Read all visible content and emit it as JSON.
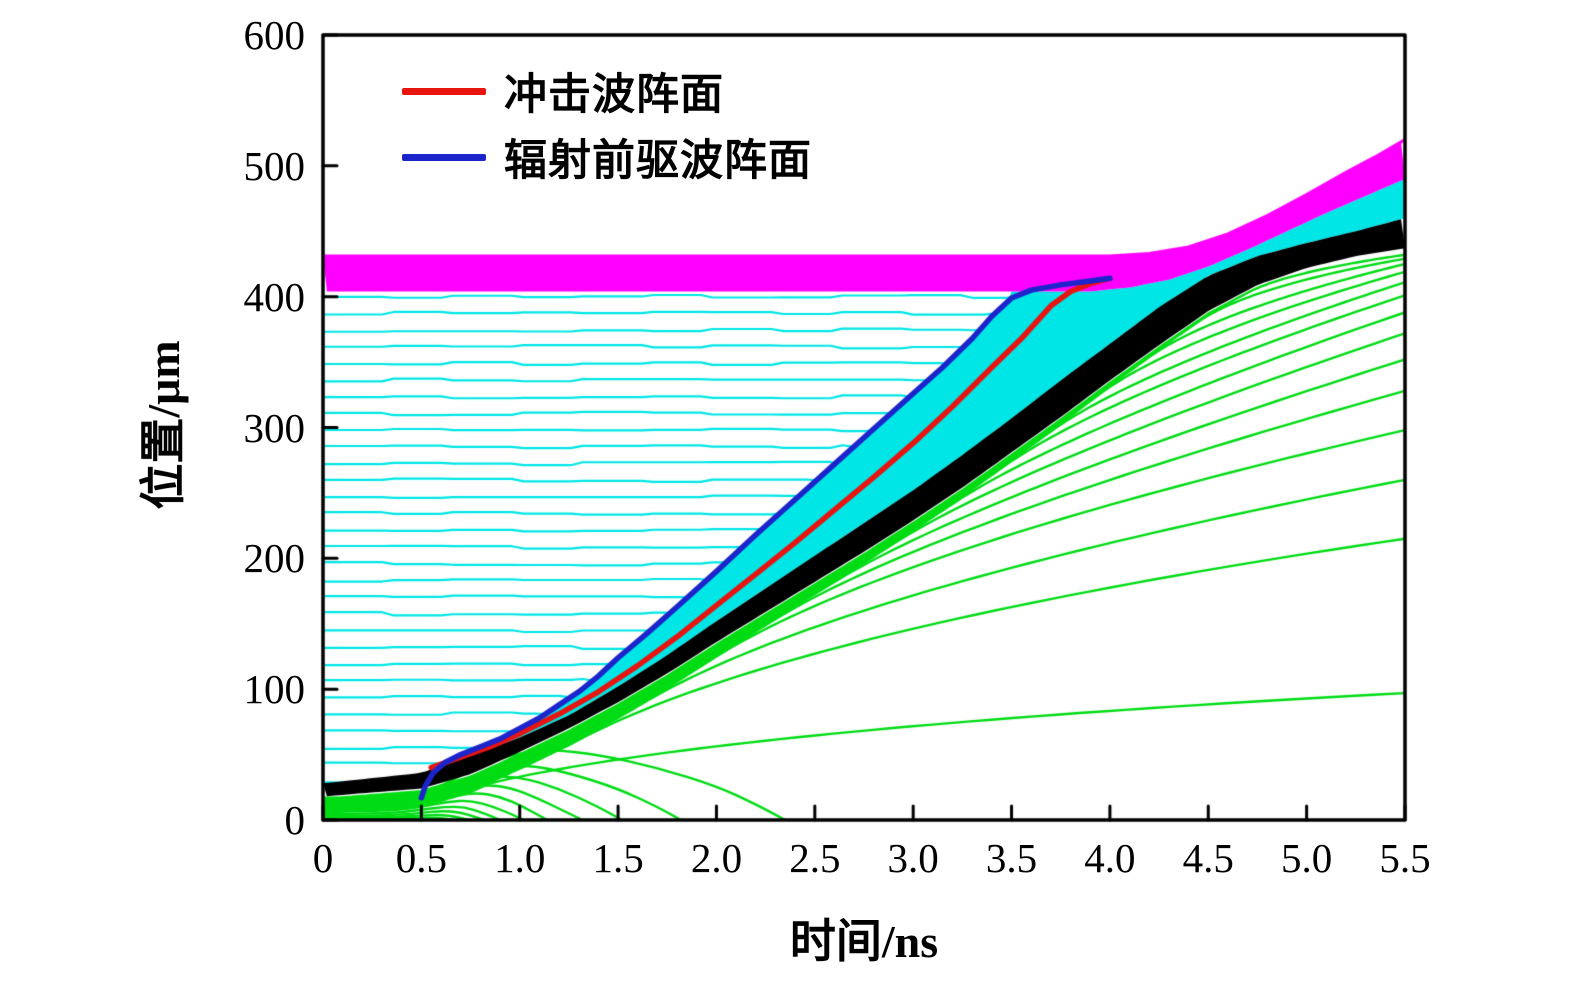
{
  "figure": {
    "background": "#ffffff"
  },
  "axes": {
    "xlabel": "时间/ns",
    "ylabel": "位置/μm",
    "x_tick_labels": [
      "0",
      "0.5",
      "1.0",
      "1.5",
      "2.0",
      "2.5",
      "3.0",
      "3.5",
      "4.0",
      "4.5",
      "5.0",
      "5.5"
    ],
    "y_tick_labels": [
      "0",
      "100",
      "200",
      "300",
      "400",
      "500",
      "600"
    ]
  },
  "legend": {
    "items": [
      {
        "label": "冲击波阵面",
        "color": "#e81410"
      },
      {
        "label": "辐射前驱波阵面",
        "color": "#1c24cc"
      }
    ]
  },
  "chart_data": {
    "type": "line",
    "title": "",
    "xlabel": "时间/ns",
    "ylabel": "位置/μm",
    "xlim": [
      0,
      5.5
    ],
    "ylim": [
      0,
      600
    ],
    "xticks": [
      0,
      0.5,
      1,
      1.5,
      2,
      2.5,
      3,
      3.5,
      4,
      4.5,
      5,
      5.5
    ],
    "yticks": [
      0,
      100,
      200,
      300,
      400,
      500,
      600
    ],
    "grid": false,
    "legend_position": "inside-top-left",
    "colors": {
      "shock_front": "#e81410",
      "precursor_front": "#1c24cc",
      "foam_tracers": "#00e6e6",
      "ablator_tracers": "#00dc14",
      "dense_shell_band": "#000000",
      "payload_band": "#ff00ff",
      "axis": "#000000"
    },
    "series": [
      {
        "name": "冲击波阵面",
        "role": "shock-front",
        "color": "#e81410",
        "points": [
          [
            0.55,
            40
          ],
          [
            0.7,
            48
          ],
          [
            0.85,
            56
          ],
          [
            1.0,
            66
          ],
          [
            1.2,
            81
          ],
          [
            1.4,
            98
          ],
          [
            1.6,
            118
          ],
          [
            1.8,
            140
          ],
          [
            2.0,
            164
          ],
          [
            2.2,
            188
          ],
          [
            2.4,
            212
          ],
          [
            2.6,
            237
          ],
          [
            2.8,
            262
          ],
          [
            3.0,
            288
          ],
          [
            3.2,
            316
          ],
          [
            3.4,
            346
          ],
          [
            3.55,
            368
          ],
          [
            3.7,
            393
          ],
          [
            3.8,
            404
          ],
          [
            3.9,
            410
          ],
          [
            4.0,
            414
          ]
        ]
      },
      {
        "name": "辐射前驱波阵面",
        "role": "radiation-precursor-front",
        "color": "#1c24cc",
        "points": [
          [
            0.5,
            17
          ],
          [
            0.52,
            26
          ],
          [
            0.56,
            36
          ],
          [
            0.62,
            44
          ],
          [
            0.7,
            50
          ],
          [
            0.8,
            56
          ],
          [
            0.9,
            62
          ],
          [
            1.0,
            70
          ],
          [
            1.1,
            78
          ],
          [
            1.2,
            88
          ],
          [
            1.3,
            98
          ],
          [
            1.4,
            110
          ],
          [
            1.5,
            124
          ],
          [
            1.65,
            143
          ],
          [
            1.8,
            163
          ],
          [
            2.0,
            190
          ],
          [
            2.2,
            218
          ],
          [
            2.4,
            245
          ],
          [
            2.6,
            272
          ],
          [
            2.8,
            299
          ],
          [
            3.0,
            326
          ],
          [
            3.15,
            346
          ],
          [
            3.3,
            368
          ],
          [
            3.4,
            385
          ],
          [
            3.5,
            399
          ],
          [
            3.6,
            405
          ],
          [
            3.75,
            409
          ],
          [
            3.9,
            412
          ],
          [
            4.0,
            414
          ]
        ]
      }
    ],
    "bands": {
      "dense_shell": {
        "color": "#000000",
        "top": [
          [
            0,
            28
          ],
          [
            0.5,
            36
          ],
          [
            0.75,
            49
          ],
          [
            1.0,
            63
          ],
          [
            1.25,
            80
          ],
          [
            1.5,
            102
          ],
          [
            1.75,
            126
          ],
          [
            2.0,
            152
          ],
          [
            2.25,
            177
          ],
          [
            2.5,
            202
          ],
          [
            2.75,
            227
          ],
          [
            3.0,
            252
          ],
          [
            3.25,
            279
          ],
          [
            3.5,
            307
          ],
          [
            3.75,
            336
          ],
          [
            4.0,
            364
          ],
          [
            4.25,
            392
          ],
          [
            4.5,
            416
          ],
          [
            4.75,
            431
          ],
          [
            5.0,
            441
          ],
          [
            5.25,
            450
          ],
          [
            5.5,
            460
          ]
        ],
        "bottom": [
          [
            0,
            18
          ],
          [
            0.5,
            24
          ],
          [
            0.75,
            35
          ],
          [
            1.0,
            52
          ],
          [
            1.25,
            70
          ],
          [
            1.5,
            90
          ],
          [
            1.75,
            112
          ],
          [
            2.0,
            136
          ],
          [
            2.25,
            159
          ],
          [
            2.5,
            182
          ],
          [
            2.75,
            205
          ],
          [
            3.0,
            229
          ],
          [
            3.25,
            254
          ],
          [
            3.5,
            281
          ],
          [
            3.75,
            308
          ],
          [
            4.0,
            336
          ],
          [
            4.25,
            363
          ],
          [
            4.5,
            389
          ],
          [
            4.75,
            409
          ],
          [
            5.0,
            422
          ],
          [
            5.25,
            431
          ],
          [
            5.5,
            437
          ]
        ]
      },
      "payload": {
        "color": "#ff00ff",
        "top": [
          [
            0,
            431
          ],
          [
            4.0,
            431
          ],
          [
            4.2,
            433
          ],
          [
            4.4,
            438
          ],
          [
            4.6,
            448
          ],
          [
            4.8,
            462
          ],
          [
            5.0,
            478
          ],
          [
            5.2,
            495
          ],
          [
            5.35,
            507
          ],
          [
            5.5,
            520
          ]
        ],
        "bottom": [
          [
            0,
            404
          ],
          [
            3.9,
            404
          ],
          [
            4.1,
            407
          ],
          [
            4.3,
            413
          ],
          [
            4.5,
            423
          ],
          [
            4.7,
            436
          ],
          [
            4.9,
            450
          ],
          [
            5.1,
            464
          ],
          [
            5.3,
            477
          ],
          [
            5.5,
            490
          ]
        ]
      }
    },
    "compressed_foam_region": {
      "color": "#00e6e6",
      "upper_bound": "precursor_front_then_payload_bottom",
      "lower_bound": "dense_shell_top",
      "t_start": 0.8
    },
    "foam_tracers": {
      "color": "#00e6e6",
      "style": "horizontal Lagrangian tracer lines terminating at radiation precursor front",
      "y_first": 30,
      "y_last": 400,
      "count": 30
    },
    "ablator_tracers_rising": [
      {
        "y0": 17,
        "peel_t": 4.7,
        "y_end": 432
      },
      {
        "y0": 16,
        "peel_t": 4.45,
        "y_end": 429
      },
      {
        "y0": 15,
        "peel_t": 4.2,
        "y_end": 425
      },
      {
        "y0": 14,
        "peel_t": 3.95,
        "y_end": 419
      },
      {
        "y0": 13,
        "peel_t": 3.7,
        "y_end": 411
      },
      {
        "y0": 12.5,
        "peel_t": 3.45,
        "y_end": 401
      },
      {
        "y0": 12,
        "peel_t": 3.2,
        "y_end": 388
      },
      {
        "y0": 11,
        "peel_t": 2.9,
        "y_end": 372
      },
      {
        "y0": 10.5,
        "peel_t": 2.6,
        "y_end": 352
      },
      {
        "y0": 10,
        "peel_t": 2.3,
        "y_end": 328
      },
      {
        "y0": 9,
        "peel_t": 2.0,
        "y_end": 298
      },
      {
        "y0": 8.5,
        "peel_t": 1.65,
        "y_end": 260
      },
      {
        "y0": 8,
        "peel_t": 1.3,
        "y_end": 215
      },
      {
        "y0": 7,
        "peel_t": 0.85,
        "y_end": 97
      }
    ],
    "ablator_tracers_blowoff": [
      [
        [
          0,
          16
        ],
        [
          0.35,
          17
        ],
        [
          0.55,
          22
        ],
        [
          0.75,
          38
        ],
        [
          0.95,
          50
        ],
        [
          1.15,
          54
        ],
        [
          1.4,
          50
        ],
        [
          1.7,
          40
        ],
        [
          2.0,
          26
        ],
        [
          2.2,
          12
        ],
        [
          2.35,
          0
        ]
      ],
      [
        [
          0,
          14
        ],
        [
          0.35,
          15
        ],
        [
          0.55,
          20
        ],
        [
          0.72,
          32
        ],
        [
          0.9,
          40
        ],
        [
          1.05,
          42
        ],
        [
          1.25,
          36
        ],
        [
          1.5,
          24
        ],
        [
          1.7,
          10
        ],
        [
          1.82,
          0
        ]
      ],
      [
        [
          0,
          12
        ],
        [
          0.35,
          13
        ],
        [
          0.55,
          18
        ],
        [
          0.7,
          27
        ],
        [
          0.85,
          33
        ],
        [
          1.0,
          33
        ],
        [
          1.2,
          24
        ],
        [
          1.4,
          10
        ],
        [
          1.52,
          0
        ]
      ],
      [
        [
          0,
          10
        ],
        [
          0.35,
          11
        ],
        [
          0.52,
          15
        ],
        [
          0.68,
          23
        ],
        [
          0.82,
          27
        ],
        [
          0.95,
          25
        ],
        [
          1.1,
          16
        ],
        [
          1.25,
          5
        ],
        [
          1.32,
          0
        ]
      ],
      [
        [
          0,
          8
        ],
        [
          0.35,
          9
        ],
        [
          0.5,
          12
        ],
        [
          0.65,
          18
        ],
        [
          0.78,
          21
        ],
        [
          0.9,
          18
        ],
        [
          1.02,
          10
        ],
        [
          1.14,
          0
        ]
      ],
      [
        [
          0,
          6
        ],
        [
          0.35,
          7
        ],
        [
          0.5,
          10
        ],
        [
          0.63,
          14
        ],
        [
          0.75,
          15
        ],
        [
          0.87,
          10
        ],
        [
          0.98,
          3
        ],
        [
          1.02,
          0
        ]
      ],
      [
        [
          0,
          4.5
        ],
        [
          0.35,
          5
        ],
        [
          0.5,
          8
        ],
        [
          0.62,
          10
        ],
        [
          0.72,
          10
        ],
        [
          0.82,
          5
        ],
        [
          0.9,
          0
        ]
      ],
      [
        [
          0,
          3
        ],
        [
          0.35,
          3.5
        ],
        [
          0.5,
          5.5
        ],
        [
          0.6,
          7
        ],
        [
          0.7,
          6
        ],
        [
          0.78,
          2
        ],
        [
          0.82,
          0
        ]
      ],
      [
        [
          0,
          2
        ],
        [
          0.35,
          2.2
        ],
        [
          0.5,
          3.5
        ],
        [
          0.6,
          4
        ],
        [
          0.68,
          2.5
        ],
        [
          0.74,
          0
        ]
      ],
      [
        [
          0,
          1
        ],
        [
          0.4,
          1.2
        ],
        [
          0.52,
          2
        ],
        [
          0.6,
          1.5
        ],
        [
          0.66,
          0
        ]
      ]
    ]
  }
}
